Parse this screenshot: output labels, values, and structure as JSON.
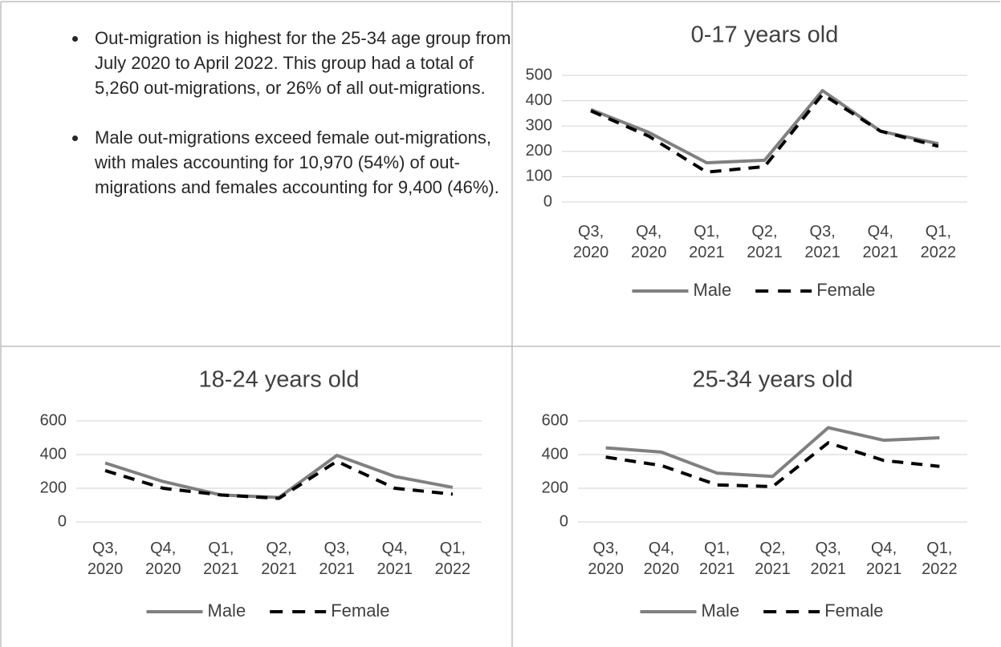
{
  "bullets": [
    "Out-migration is highest for the 25-34 age group from July 2020 to April 2022. This group had a total of 5,260 out-migrations, or 26% of all out-migrations.",
    "Male out-migrations exceed female out-migrations, with males accounting for 10,970 (54%) of out-migrations and females accounting for 9,400 (46%)."
  ],
  "chart_data": [
    {
      "type": "line",
      "title": "0-17 years old",
      "categories": [
        "Q3, 2020",
        "Q4, 2020",
        "Q1, 2021",
        "Q2, 2021",
        "Q3, 2021",
        "Q4, 2021",
        "Q1, 2022"
      ],
      "series": [
        {
          "name": "Male",
          "color": "#808080",
          "values": [
            365,
            275,
            155,
            165,
            440,
            280,
            230
          ]
        },
        {
          "name": "Female",
          "color": "#000000",
          "dashed": true,
          "values": [
            360,
            260,
            118,
            140,
            425,
            280,
            220
          ]
        }
      ],
      "ylim": [
        0,
        500
      ],
      "yticks": [
        0,
        100,
        200,
        300,
        400,
        500
      ],
      "grid": true,
      "legend": "bottom"
    },
    {
      "type": "line",
      "title": "18-24 years old",
      "categories": [
        "Q3, 2020",
        "Q4, 2020",
        "Q1, 2021",
        "Q2, 2021",
        "Q3, 2021",
        "Q4, 2021",
        "Q1, 2022"
      ],
      "series": [
        {
          "name": "Male",
          "color": "#808080",
          "values": [
            350,
            240,
            160,
            145,
            395,
            270,
            205
          ]
        },
        {
          "name": "Female",
          "color": "#000000",
          "dashed": true,
          "values": [
            305,
            200,
            160,
            140,
            360,
            200,
            165
          ]
        }
      ],
      "ylim": [
        0,
        600
      ],
      "yticks": [
        0,
        200,
        400,
        600
      ],
      "grid": true,
      "legend": "bottom"
    },
    {
      "type": "line",
      "title": "25-34 years old",
      "categories": [
        "Q3, 2020",
        "Q4, 2020",
        "Q1, 2021",
        "Q2, 2021",
        "Q3, 2021",
        "Q4, 2021",
        "Q1, 2022"
      ],
      "series": [
        {
          "name": "Male",
          "color": "#808080",
          "values": [
            440,
            415,
            290,
            270,
            560,
            485,
            500
          ]
        },
        {
          "name": "Female",
          "color": "#000000",
          "dashed": true,
          "values": [
            385,
            335,
            220,
            210,
            470,
            365,
            330
          ]
        }
      ],
      "ylim": [
        0,
        600
      ],
      "yticks": [
        0,
        200,
        400,
        600
      ],
      "grid": true,
      "legend": "bottom"
    }
  ]
}
